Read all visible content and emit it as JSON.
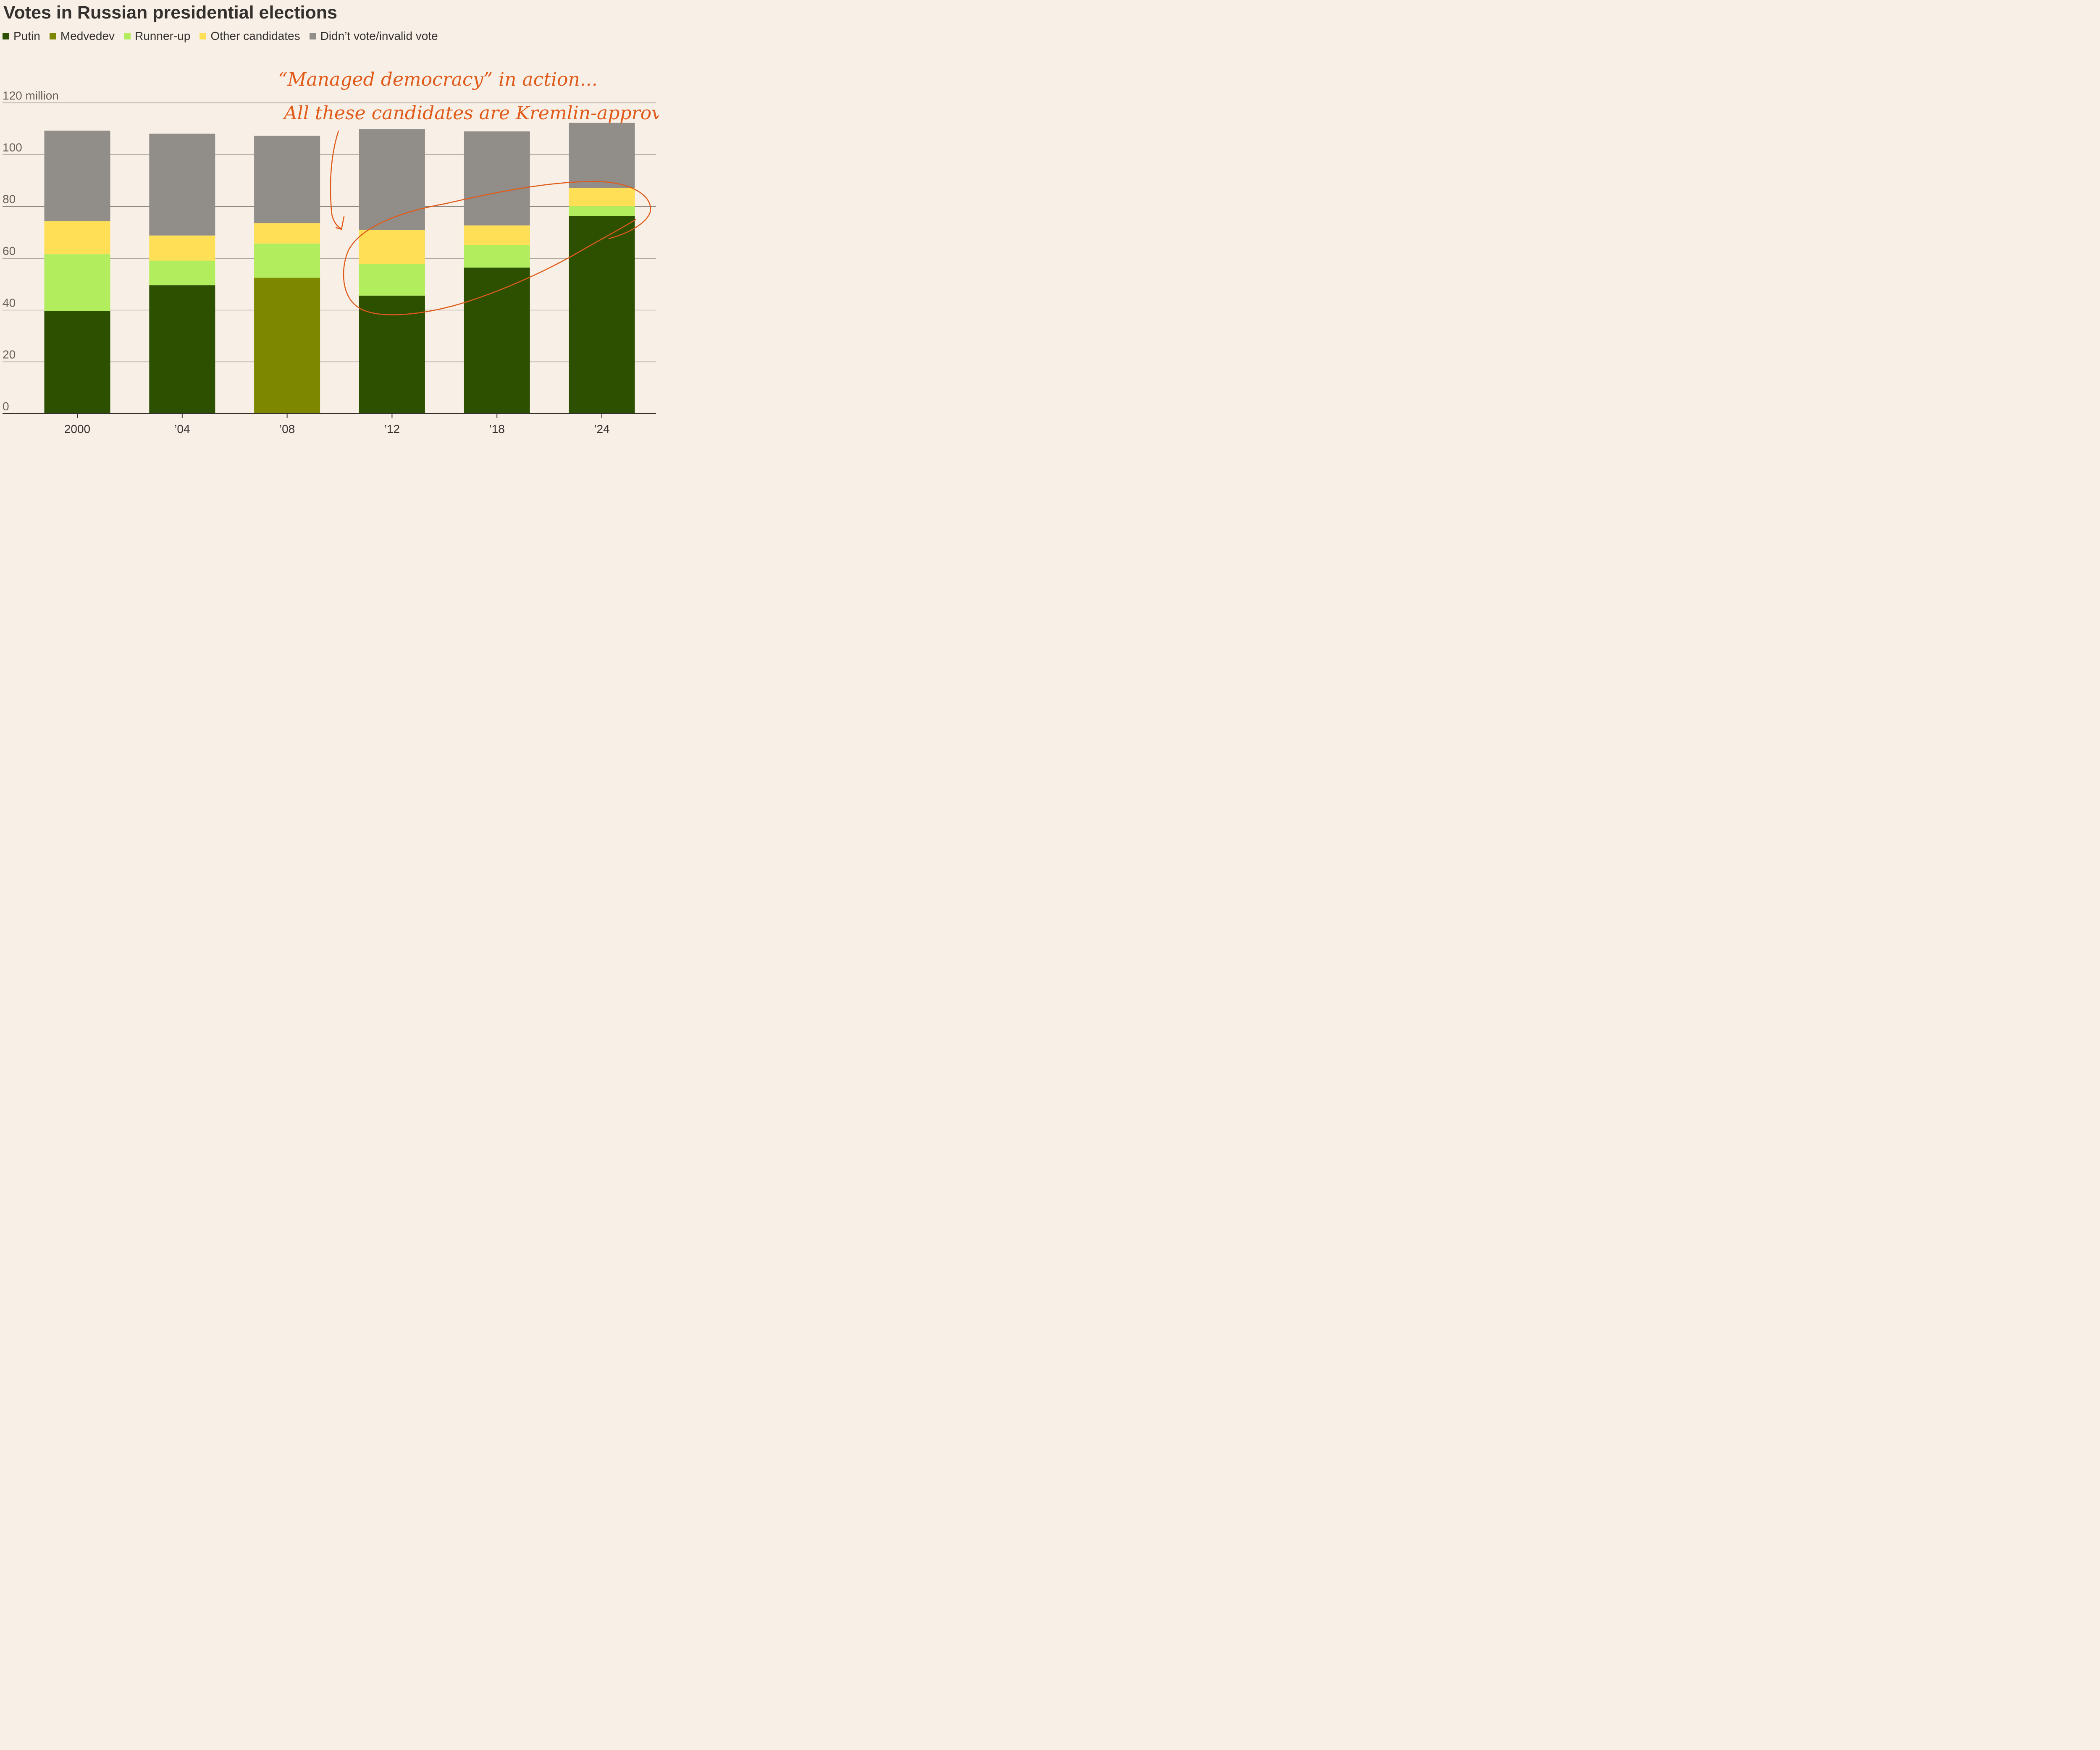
{
  "title": "Votes in Russian presidential elections",
  "legend": [
    {
      "label": "Putin",
      "color": "#2c5000"
    },
    {
      "label": "Medvedev",
      "color": "#7d8700"
    },
    {
      "label": "Runner-up",
      "color": "#b2ed5e"
    },
    {
      "label": "Other candidates",
      "color": "#ffdf55"
    },
    {
      "label": "Didn’t vote/invalid vote",
      "color": "#918d89"
    }
  ],
  "annotation": {
    "line1": "“Managed democracy” in action...",
    "line2": "All these candidates are Kremlin-approved",
    "color": "#e05a1a"
  },
  "chart_data": {
    "type": "bar",
    "stacked": true,
    "title": "Votes in Russian presidential elections",
    "xlabel": "",
    "ylabel": "",
    "ylim": [
      0,
      120
    ],
    "y_ticks": [
      0,
      20,
      40,
      60,
      80,
      100,
      120
    ],
    "y_tick_labels": [
      "0",
      "20",
      "40",
      "60",
      "80",
      "100",
      "120 million"
    ],
    "grid": true,
    "legend_position": "top-left",
    "categories": [
      "2000",
      "’04",
      "’08",
      "’12",
      "’18",
      "’24"
    ],
    "series": [
      {
        "name": "Putin",
        "color": "#2c5000",
        "values": [
          39.7,
          49.6,
          0,
          45.6,
          56.4,
          76.3
        ]
      },
      {
        "name": "Medvedev",
        "color": "#7d8700",
        "values": [
          0,
          0,
          52.5,
          0,
          0,
          0
        ]
      },
      {
        "name": "Runner-up",
        "color": "#b2ed5e",
        "values": [
          21.9,
          9.5,
          13.2,
          12.3,
          8.7,
          3.8
        ]
      },
      {
        "name": "Other candidates",
        "color": "#ffdf55",
        "values": [
          12.7,
          9.7,
          7.9,
          13.0,
          7.6,
          7.1
        ]
      },
      {
        "name": "Didn’t vote/invalid vote",
        "color": "#918d89",
        "values": [
          35.0,
          39.3,
          33.7,
          39.0,
          36.3,
          25.1
        ]
      }
    ]
  }
}
